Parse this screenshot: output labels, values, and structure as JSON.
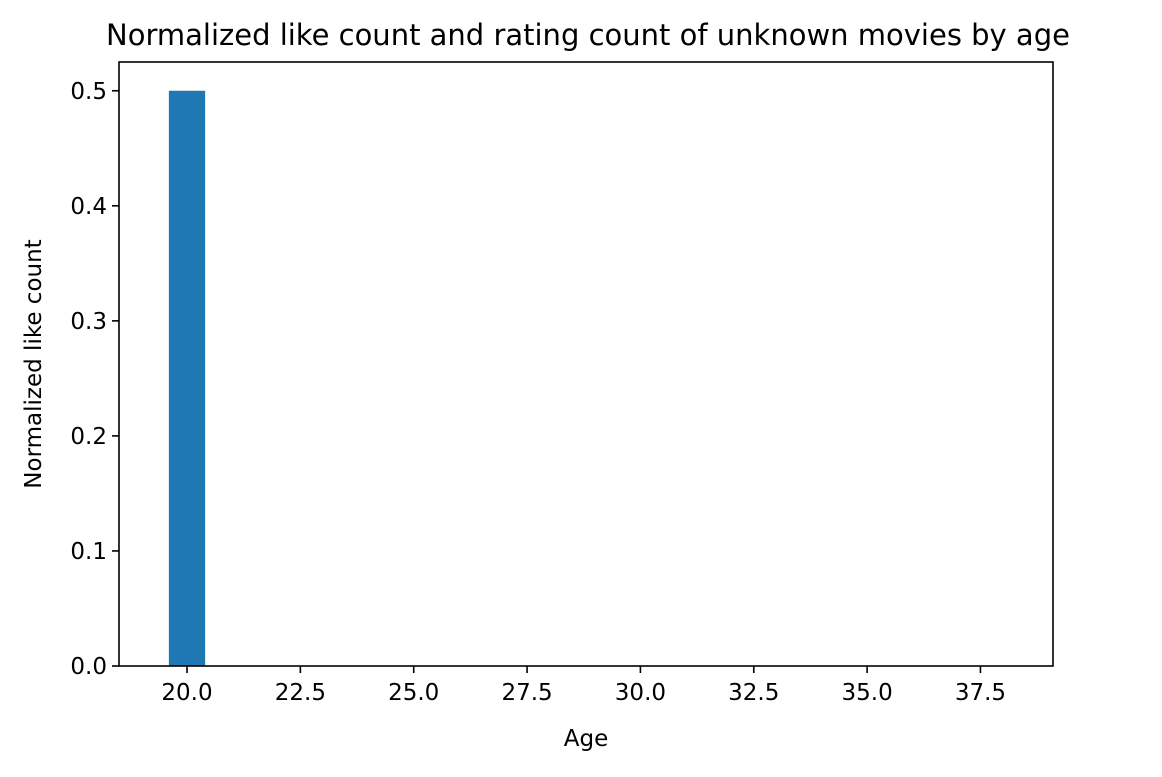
{
  "chart_data": {
    "type": "bar",
    "title": "Normalized like count and rating count of unknown movies by age",
    "xlabel": "Age",
    "ylabel": "Normalized like count",
    "x": [
      20
    ],
    "values": [
      0.5
    ],
    "bar_width": 0.8,
    "xlim": [
      18.5,
      39.1
    ],
    "ylim": [
      0,
      0.525
    ],
    "x_ticks": [
      20.0,
      22.5,
      25.0,
      27.5,
      30.0,
      32.5,
      35.0,
      37.5
    ],
    "x_tick_labels": [
      "20.0",
      "22.5",
      "25.0",
      "27.5",
      "30.0",
      "32.5",
      "35.0",
      "37.5"
    ],
    "y_ticks": [
      0.0,
      0.1,
      0.2,
      0.3,
      0.4,
      0.5
    ],
    "y_tick_labels": [
      "0.0",
      "0.1",
      "0.2",
      "0.3",
      "0.4",
      "0.5"
    ],
    "grid": false,
    "colors": {
      "bar": "#1f77b4",
      "axes": "#000000",
      "background": "#ffffff"
    }
  }
}
